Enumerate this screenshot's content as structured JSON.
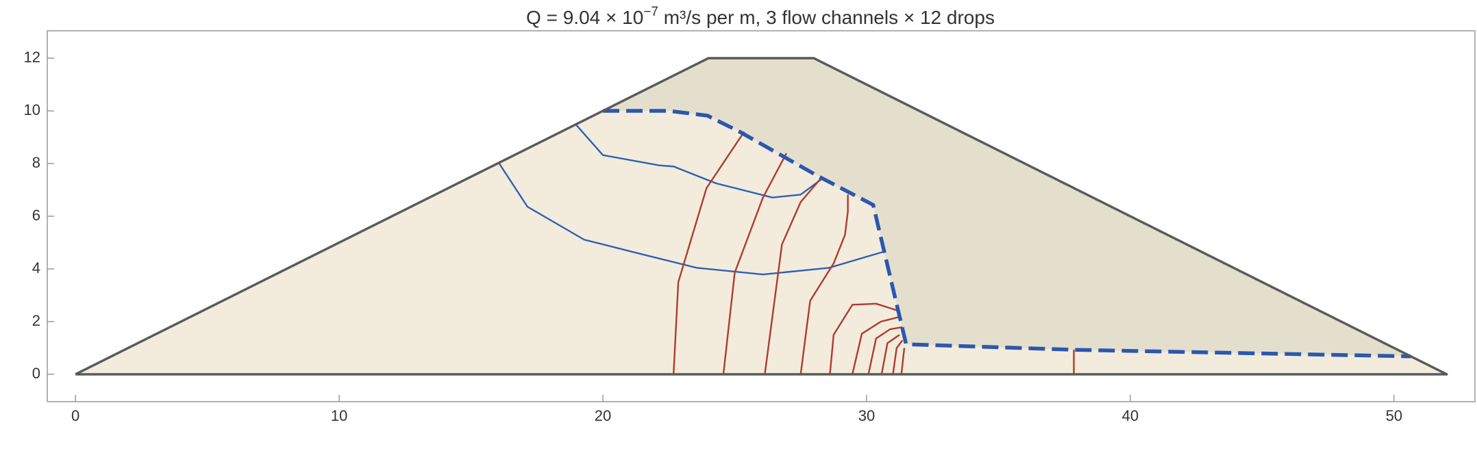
{
  "chart_data": {
    "type": "flow-net",
    "title": [
      "Q = 9.04 × 10",
      "−7",
      " m³/s per m,   3 flow channels × 12 drops"
    ],
    "xlim": [
      -1.07,
      53.07
    ],
    "ylim": [
      -1.04,
      13.04
    ],
    "xticks": [
      0,
      10,
      20,
      30,
      40,
      50
    ],
    "yticks": [
      0,
      2,
      4,
      6,
      8,
      10,
      12
    ],
    "dam": {
      "x": [
        0,
        24,
        28,
        52,
        0
      ],
      "y": [
        0,
        12,
        12,
        0,
        0
      ],
      "color": "#5a5a5a",
      "fill": "#f3ecdc"
    },
    "dry_zone": {
      "x": [
        28,
        24
      ],
      "y": [
        12,
        12
      ],
      "fill": "#e4dfcc"
    },
    "phreatic": {
      "x": [
        20,
        22.5,
        23.96,
        25.2,
        28.2,
        30.25,
        31.5,
        37.86,
        50.64
      ],
      "y": [
        10,
        10,
        9.82,
        9.2,
        7.5,
        6.43,
        1.14,
        0.93,
        0.68
      ],
      "color": "#2b57b0"
    },
    "curve_groups": [
      {
        "color": "#2f5fb5",
        "curves": [
          {
            "x": [
              18.96,
              20,
              22.14,
              22.68,
              24.29,
              26.43,
              27.5,
              28.32
            ],
            "y": [
              9.5,
              8.32,
              7.93,
              7.89,
              7.25,
              6.71,
              6.82,
              7.43
            ]
          },
          {
            "x": [
              16.07,
              17.14,
              19.29,
              21.43,
              23.57,
              26.07,
              28.57,
              30.6
            ],
            "y": [
              8,
              6.36,
              5.11,
              4.57,
              4.04,
              3.79,
              4.04,
              4.64
            ]
          }
        ]
      },
      {
        "color": "#b03a2e",
        "curves": [
          {
            "x": [
              22.68,
              22.86,
              23.93,
              25.36
            ],
            "y": [
              0,
              3.5,
              7.07,
              9.21
            ]
          },
          {
            "x": [
              24.57,
              25,
              26.07,
              26.96
            ],
            "y": [
              0,
              3.86,
              6.71,
              8.39
            ]
          },
          {
            "x": [
              26.14,
              26.79,
              27.5,
              28.32
            ],
            "y": [
              0,
              4.93,
              6.54,
              7.5
            ]
          },
          {
            "x": [
              27.5,
              27.86,
              28.75,
              29.18,
              29.29,
              29.29
            ],
            "y": [
              0,
              2.79,
              4.21,
              5.29,
              6.18,
              6.82
            ]
          },
          {
            "x": [
              28.61,
              28.75,
              29.46,
              30.36,
              30.93,
              31.14
            ],
            "y": [
              0,
              1.5,
              2.64,
              2.68,
              2.5,
              2.43
            ]
          },
          {
            "x": [
              29.46,
              29.82,
              30.54,
              31.25
            ],
            "y": [
              0,
              1.54,
              2.0,
              2.18
            ]
          },
          {
            "x": [
              30.07,
              30.36,
              30.89,
              31.36
            ],
            "y": [
              0,
              1.36,
              1.71,
              1.79
            ]
          },
          {
            "x": [
              30.57,
              30.79,
              31.25
            ],
            "y": [
              0,
              1.18,
              1.5
            ]
          },
          {
            "x": [
              31.0,
              31.14,
              31.36
            ],
            "y": [
              0,
              1,
              1.29
            ]
          },
          {
            "x": [
              31.32,
              31.43
            ],
            "y": [
              0,
              1.0
            ]
          },
          {
            "x": [
              37.86,
              37.86
            ],
            "y": [
              0,
              0.93
            ]
          }
        ]
      }
    ]
  }
}
